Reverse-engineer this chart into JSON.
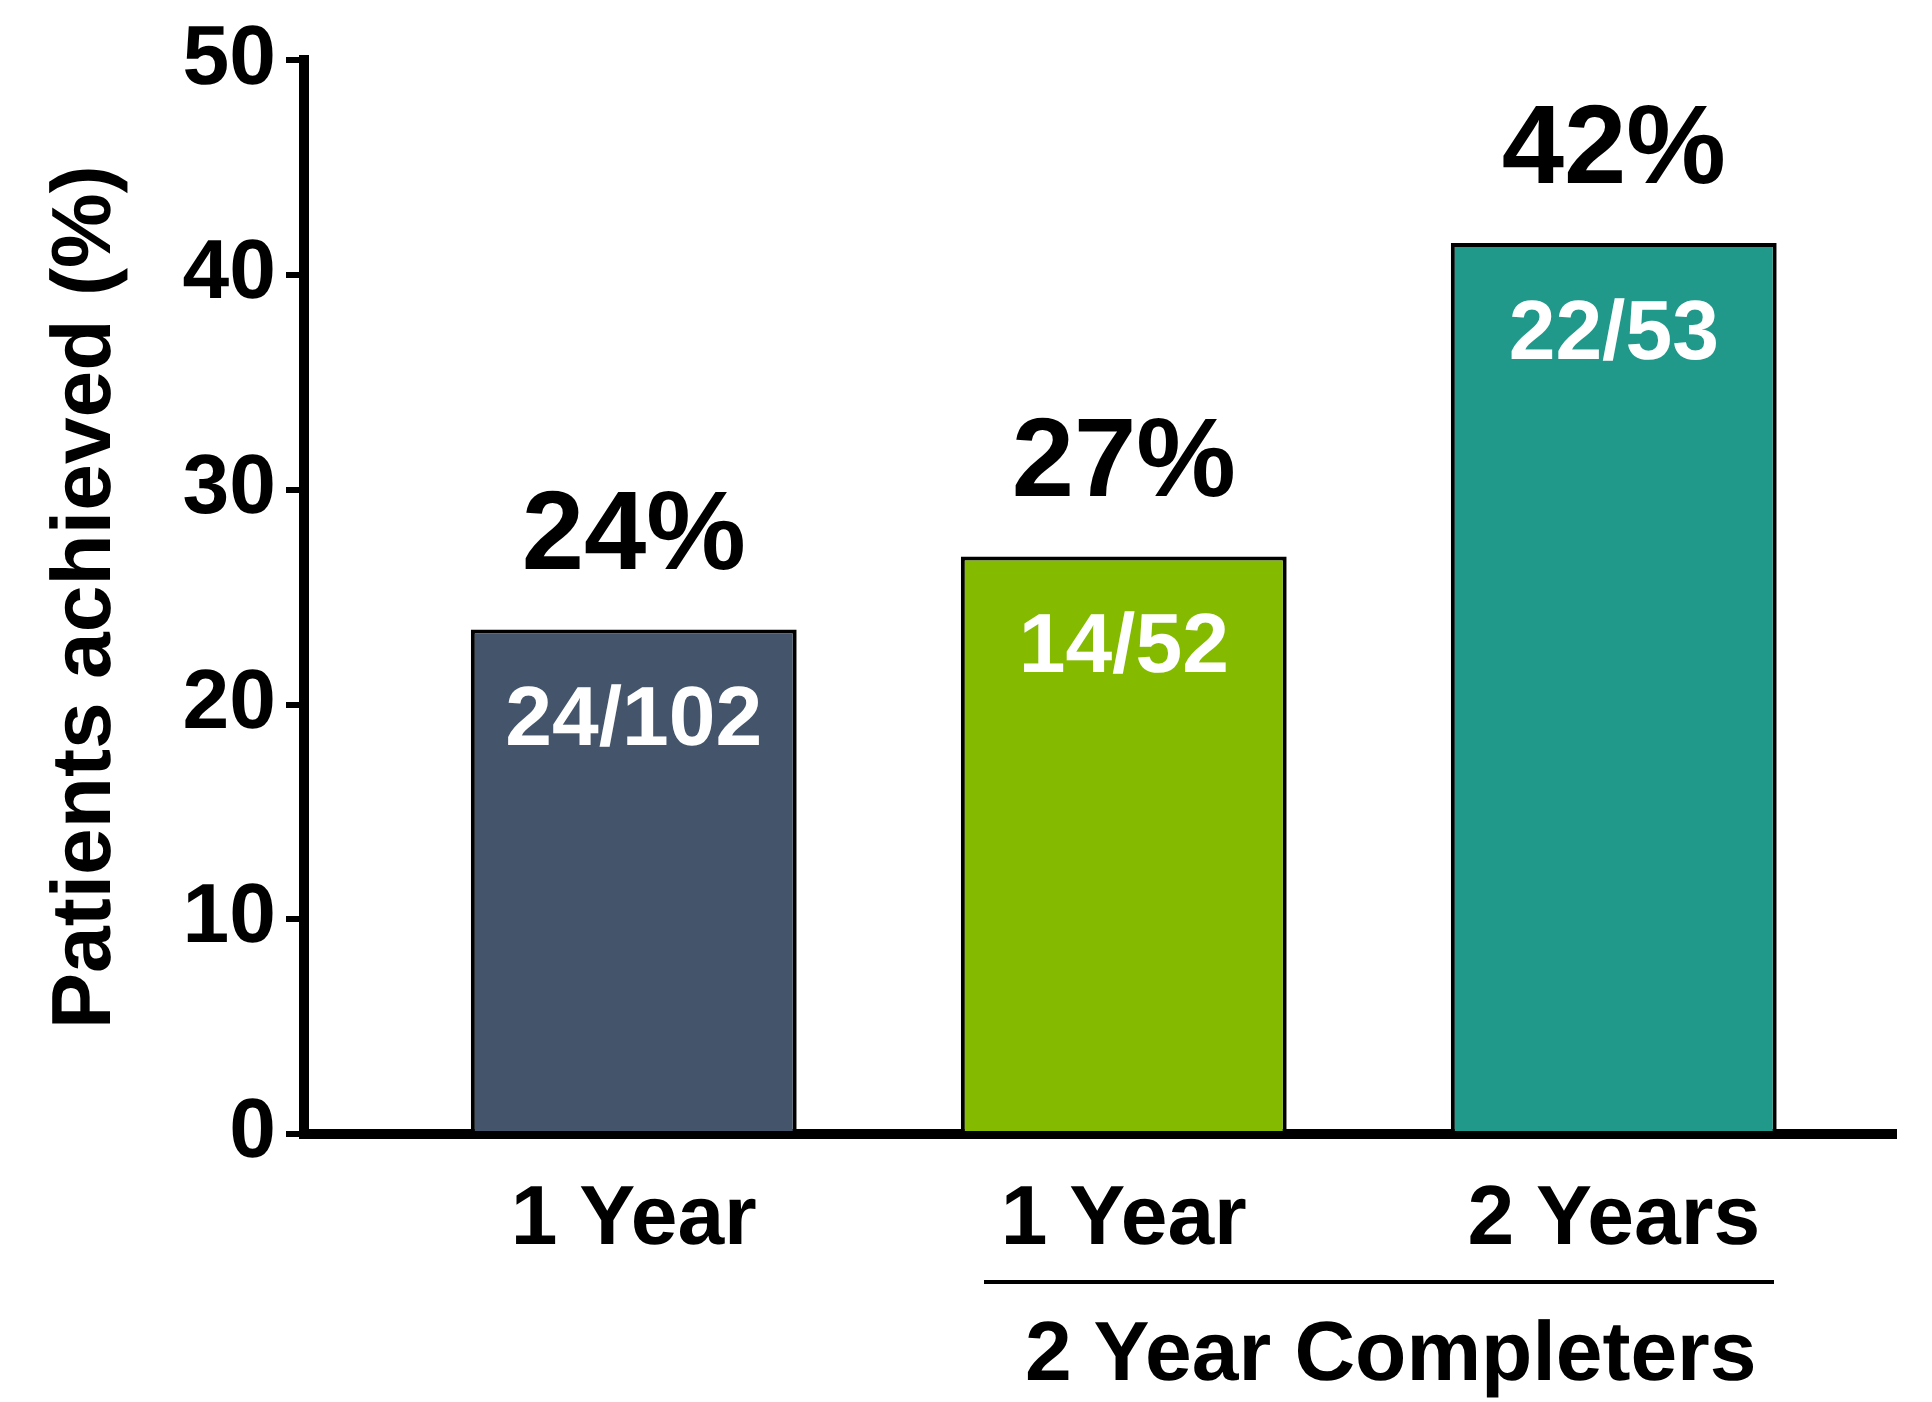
{
  "chart_data": {
    "type": "bar",
    "categories": [
      "1 Year",
      "1 Year",
      "2 Years"
    ],
    "values": [
      23.5,
      26.9,
      41.5
    ],
    "colors": [
      "#44546a",
      "#84bb00",
      "#20998a"
    ],
    "ylabel": "Patients achieved (%)",
    "ylim": [
      0,
      50
    ],
    "yticks": [
      0,
      10,
      20,
      30,
      40,
      50
    ],
    "grid": false,
    "legend": false,
    "value_labels": [
      "24%",
      "27%",
      "42%"
    ],
    "annotations": [
      {
        "text": "24/102",
        "y": 23.5
      },
      {
        "text": "14/52",
        "y": 26.9
      },
      {
        "text": "22/53",
        "y": 41.5
      },
      "2 Year Completers"
    ]
  }
}
